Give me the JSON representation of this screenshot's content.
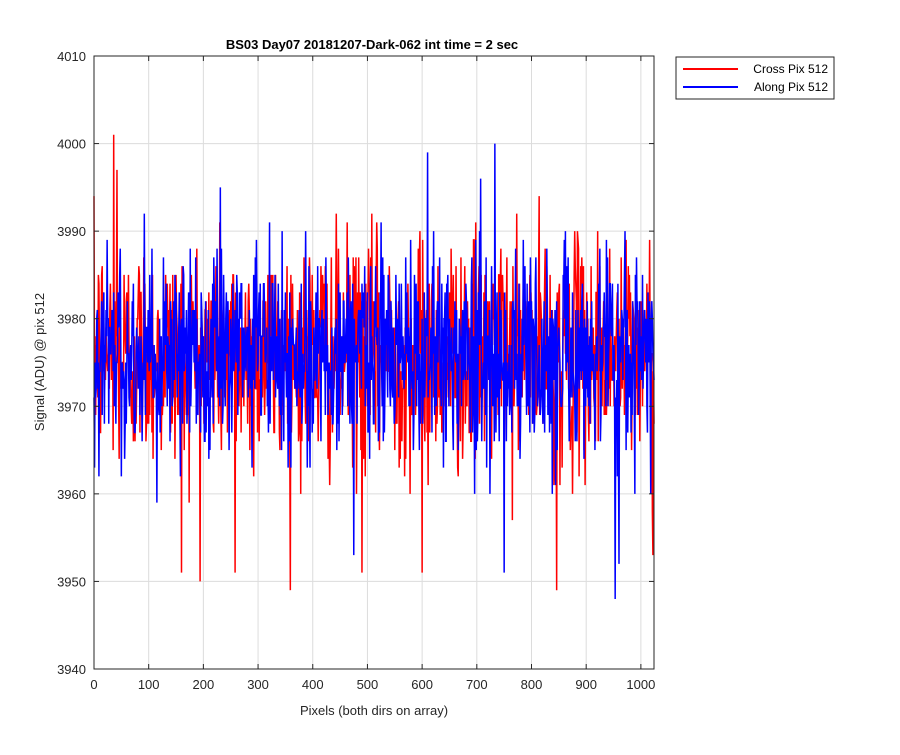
{
  "chart_data": {
    "type": "line",
    "title": "BS03 Day07 20181207-Dark-062 int time = 2 sec",
    "xlabel": "Pixels (both dirs on array)",
    "ylabel": "Signal (ADU) @ pix 512",
    "xlim": [
      0,
      1024
    ],
    "ylim": [
      3940,
      4010
    ],
    "xticks": [
      0,
      100,
      200,
      300,
      400,
      500,
      600,
      700,
      800,
      900,
      1000
    ],
    "yticks": [
      3940,
      3950,
      3960,
      3970,
      3980,
      3990,
      4000,
      4010
    ],
    "grid": true,
    "legend_position": "outside-top-right",
    "series_noise": {
      "Cross Pix 512": {
        "mean": 3976,
        "min": 3949,
        "max": 4001
      },
      "Along Pix 512": {
        "mean": 3976,
        "min": 3948,
        "max": 4000
      }
    },
    "series": [
      {
        "name": "Cross Pix 512",
        "color": "#ff0000",
        "notable_points": [
          [
            36,
            4001
          ],
          [
            42,
            3997
          ],
          [
            160,
            3951
          ],
          [
            258,
            3951
          ],
          [
            490,
            3951
          ],
          [
            600,
            3951
          ],
          [
            846,
            3949
          ],
          [
            1022,
            3953
          ]
        ]
      },
      {
        "name": "Along Pix 512",
        "color": "#0000ff",
        "notable_points": [
          [
            475,
            3953
          ],
          [
            733,
            4000
          ],
          [
            750,
            3951
          ],
          [
            953,
            3948
          ],
          [
            960,
            3952
          ]
        ]
      }
    ]
  }
}
